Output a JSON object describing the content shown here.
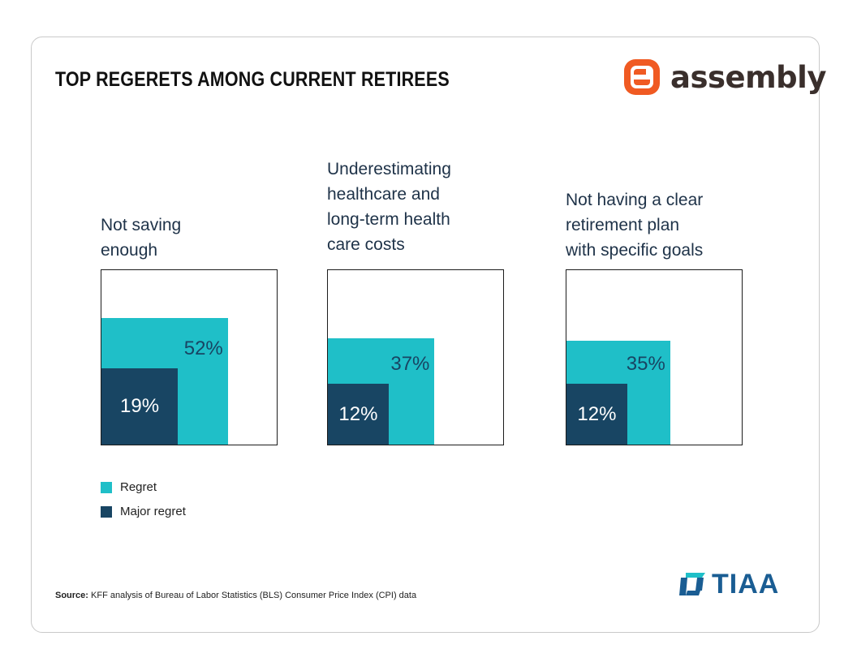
{
  "title": "TOP REGERETS AMONG CURRENT RETIREES",
  "brand": {
    "name": "assembly",
    "color": "#f05a22",
    "icon": "assembly-logo-icon"
  },
  "partner": {
    "name": "TIAA",
    "color": "#1a5d93",
    "icon": "tiaa-logo-icon"
  },
  "colors": {
    "regret": "#1fbfc8",
    "major_regret": "#184563"
  },
  "chart_data": {
    "type": "bar",
    "categories": [
      "Not saving enough",
      "Underestimating healthcare and long-term health care costs",
      "Not having a clear retirement plan with specific goals"
    ],
    "category_lines": [
      [
        "Not saving",
        "enough"
      ],
      [
        "Underestimating",
        "healthcare and",
        "long-term health",
        "care costs"
      ],
      [
        "Not having a clear",
        "retirement plan",
        "with specific goals"
      ]
    ],
    "series": [
      {
        "name": "Regret",
        "values": [
          52,
          37,
          35
        ],
        "labels": [
          "52%",
          "37%",
          "35%"
        ]
      },
      {
        "name": "Major regret",
        "values": [
          19,
          12,
          12
        ],
        "labels": [
          "19%",
          "12%",
          "12%"
        ]
      }
    ],
    "ylim": [
      0,
      100
    ],
    "legend_position": "bottom-left"
  },
  "source": {
    "label": "Source:",
    "text": " KFF analysis of Bureau of Labor Statistics (BLS) Consumer Price Index (CPI) data"
  }
}
